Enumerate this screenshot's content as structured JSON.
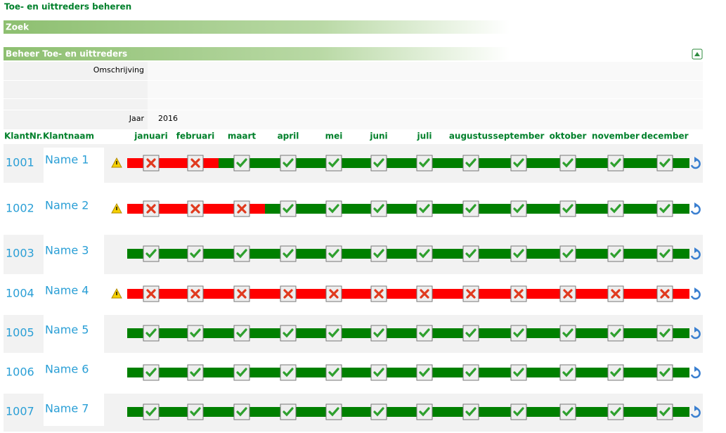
{
  "page_title": "Toe- en uittreders beheren",
  "sections": {
    "search": "Zoek",
    "manage": "Beheer Toe- en uittreders"
  },
  "form": {
    "description_label": "Omschrijving",
    "year_label": "Jaar",
    "year": "2016"
  },
  "table": {
    "headers": {
      "number": "KlantNr.",
      "name": "Klantnaam"
    },
    "months": [
      "januari",
      "februari",
      "maart",
      "april",
      "mei",
      "juni",
      "juli",
      "augustus",
      "september",
      "oktober",
      "november",
      "december"
    ],
    "rows": [
      {
        "number": "1001",
        "name": "Name 1",
        "warning": true,
        "completed": [
          false,
          false,
          true,
          true,
          true,
          true,
          true,
          true,
          true,
          true,
          true,
          true
        ]
      },
      {
        "number": "1002",
        "name": "Name 2",
        "warning": true,
        "completed": [
          false,
          false,
          false,
          true,
          true,
          true,
          true,
          true,
          true,
          true,
          true,
          true
        ]
      },
      {
        "number": "1003",
        "name": "Name 3",
        "warning": false,
        "completed": [
          true,
          true,
          true,
          true,
          true,
          true,
          true,
          true,
          true,
          true,
          true,
          true
        ]
      },
      {
        "number": "1004",
        "name": "Name 4",
        "warning": true,
        "completed": [
          false,
          false,
          false,
          false,
          false,
          false,
          false,
          false,
          false,
          false,
          false,
          false
        ]
      },
      {
        "number": "1005",
        "name": "Name 5",
        "warning": false,
        "completed": [
          true,
          true,
          true,
          true,
          true,
          true,
          true,
          true,
          true,
          true,
          true,
          true
        ]
      },
      {
        "number": "1006",
        "name": "Name 6",
        "warning": false,
        "completed": [
          true,
          true,
          true,
          true,
          true,
          true,
          true,
          true,
          true,
          true,
          true,
          true
        ]
      },
      {
        "number": "1007",
        "name": "Name 7",
        "warning": false,
        "completed": [
          true,
          true,
          true,
          true,
          true,
          true,
          true,
          true,
          true,
          true,
          true,
          true
        ]
      }
    ]
  }
}
